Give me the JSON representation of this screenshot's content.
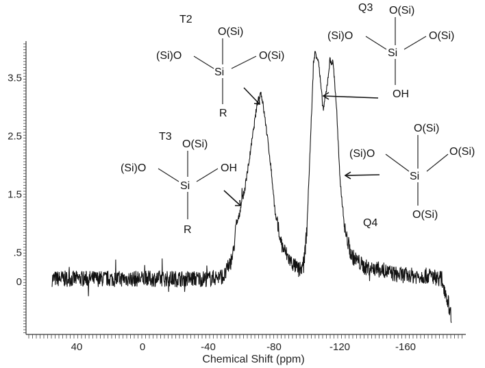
{
  "chart_data": {
    "type": "line",
    "title": "",
    "xlabel": "Chemical Shift (ppm)",
    "ylabel": "",
    "xlim": [
      60,
      -190
    ],
    "ylim": [
      -0.9,
      4.2
    ],
    "x_reversed": true,
    "grid": false,
    "x_ticks": [
      40,
      0,
      -40,
      -80,
      -120,
      -160
    ],
    "x_tick_labels": [
      "40",
      "0",
      "-40",
      "-80",
      "-120",
      "-160"
    ],
    "y_ticks": [
      3.5,
      2.5,
      1.5,
      0.5,
      0
    ],
    "y_tick_labels": [
      "3.5",
      "2.5",
      "1.5",
      ".5",
      "0"
    ],
    "series": [
      {
        "x": [
          55,
          40,
          20,
          0,
          -20,
          -40,
          -50,
          -55,
          -57,
          -59,
          -60,
          -62,
          -65,
          -68,
          -70,
          -72,
          -73,
          -75,
          -78,
          -81,
          -85,
          -90,
          -95,
          -98,
          -100,
          -102,
          -104,
          -105,
          -107,
          -109,
          -110,
          -112,
          -114,
          -116,
          -118,
          -120,
          -123,
          -127,
          -135,
          -145,
          -155,
          -165,
          -175,
          -182,
          -185,
          -188
        ],
        "y": [
          0.05,
          0.05,
          0.05,
          0.05,
          0.05,
          0.05,
          0.1,
          0.45,
          0.95,
          1.15,
          1.35,
          1.55,
          2.1,
          2.7,
          3.1,
          3.25,
          3.1,
          2.7,
          2.0,
          1.1,
          0.6,
          0.35,
          0.2,
          0.25,
          0.9,
          2.3,
          3.7,
          3.95,
          3.8,
          3.2,
          2.95,
          3.3,
          3.8,
          3.75,
          3.0,
          1.8,
          0.9,
          0.45,
          0.25,
          0.2,
          0.12,
          0.1,
          0.1,
          0.05,
          -0.25,
          -0.6
        ]
      }
    ],
    "annotations": [
      {
        "label": "T2",
        "structure": {
          "top": "O(Si)",
          "left": "(Si)O",
          "right": "O(Si)",
          "center": "Si",
          "bottom": "R"
        }
      },
      {
        "label": "T3",
        "structure": {
          "top": "O(Si)",
          "left": "(Si)O",
          "right": "OH",
          "center": "Si",
          "bottom": "R"
        }
      },
      {
        "label": "Q3",
        "structure": {
          "top": "O(Si)",
          "left": "(Si)O",
          "right": "O(Si)",
          "center": "Si",
          "bottom": "OH"
        }
      },
      {
        "label": "Q4",
        "structure": {
          "top": "O(Si)",
          "left": "(Si)O",
          "right": "O(Si)",
          "center": "Si",
          "bottom": "O(Si)"
        }
      }
    ]
  }
}
